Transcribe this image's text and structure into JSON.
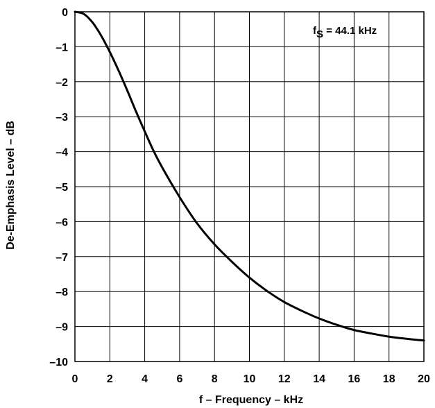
{
  "chart_data": {
    "type": "line",
    "xlabel": "f – Frequency – kHz",
    "ylabel": "De-Emphasis Level – dB",
    "xlim": [
      0,
      20
    ],
    "ylim": [
      -10,
      0
    ],
    "x_ticks": [
      "0",
      "2",
      "4",
      "6",
      "8",
      "10",
      "12",
      "14",
      "16",
      "18",
      "20"
    ],
    "y_ticks": [
      "0",
      "–1",
      "–2",
      "–3",
      "–4",
      "–5",
      "–6",
      "–7",
      "–8",
      "–9",
      "–10"
    ],
    "grid": true,
    "annotation": {
      "prefix": "f",
      "subscript": "S",
      "suffix": " = 44.1 kHz",
      "position": "top-right"
    },
    "series": [
      {
        "x": [
          0,
          0.5,
          1,
          1.5,
          2,
          2.5,
          3,
          3.5,
          4,
          4.5,
          5,
          6,
          7,
          8,
          9,
          10,
          11,
          12,
          13,
          14,
          15,
          16,
          17,
          18,
          19,
          20
        ],
        "y": [
          0,
          -0.06,
          -0.3,
          -0.68,
          -1.15,
          -1.68,
          -2.25,
          -2.85,
          -3.42,
          -3.97,
          -4.45,
          -5.3,
          -6.05,
          -6.65,
          -7.15,
          -7.6,
          -7.98,
          -8.3,
          -8.55,
          -8.77,
          -8.95,
          -9.1,
          -9.2,
          -9.29,
          -9.35,
          -9.4
        ]
      }
    ]
  }
}
